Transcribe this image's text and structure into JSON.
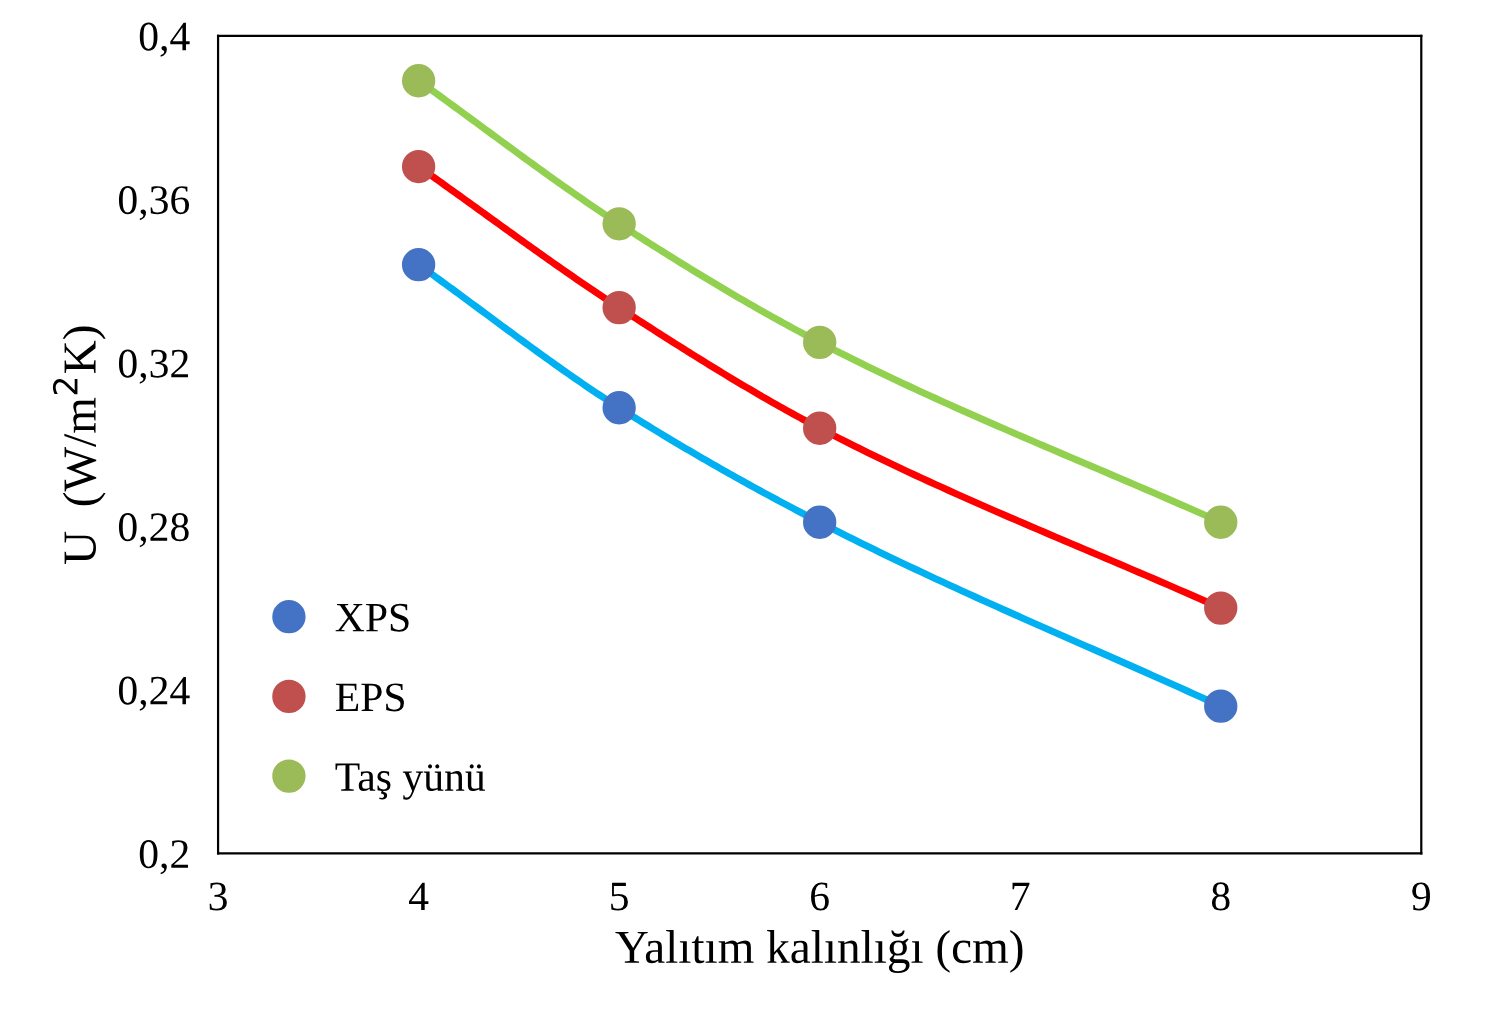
{
  "chart_data": {
    "type": "line",
    "xlabel": "Yalıtım kalınlığı (cm)",
    "ylabel": "U  (W/m$^{2}$K)",
    "x": [
      4,
      5,
      6,
      8
    ],
    "series": [
      {
        "color": "#00b0f0",
        "values": [
          0.344,
          0.309,
          0.281,
          0.236
        ]
      },
      {
        "color": "#ff0000",
        "values": [
          0.368,
          0.3335,
          0.304,
          0.26
        ]
      },
      {
        "color": "#92d050",
        "values": [
          0.389,
          0.354,
          0.325,
          0.281
        ]
      },
      {
        "type": "scatter",
        "marker": "circle",
        "name": "XPS",
        "color": "#4472c4",
        "values": [
          0.344,
          0.309,
          0.281,
          0.236
        ]
      },
      {
        "type": "scatter",
        "marker": "circle",
        "name": "EPS",
        "color": "#c0504d",
        "values": [
          0.368,
          0.3335,
          0.304,
          0.26
        ]
      },
      {
        "type": "scatter",
        "marker": "circle",
        "name": "Taş yünü",
        "color": "#9bbb59",
        "values": [
          0.389,
          0.354,
          0.325,
          0.281
        ]
      }
    ],
    "xlim": [
      3,
      9
    ],
    "xticks": [
      3,
      4,
      5,
      6,
      7,
      8,
      9
    ],
    "ylim": [
      0.2,
      0.4
    ],
    "yticks": [
      {
        "value": 0.2,
        "label": "0,2"
      },
      {
        "value": 0.24,
        "label": "0,24"
      },
      {
        "value": 0.28,
        "label": "0,28"
      },
      {
        "value": 0.32,
        "label": "0,32"
      },
      {
        "value": 0.36,
        "label": "0,36"
      },
      {
        "value": 0.4,
        "label": "0,4"
      }
    ],
    "grid": false,
    "legend": "lower left"
  }
}
